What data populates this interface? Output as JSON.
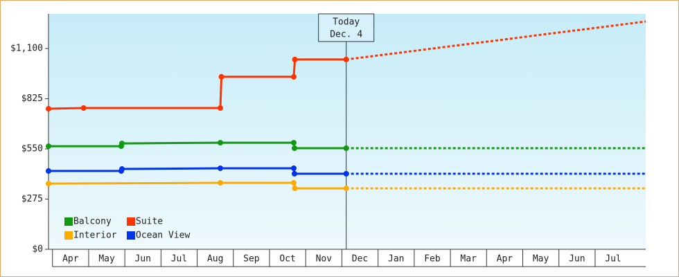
{
  "chart_data": {
    "type": "line",
    "annotation": {
      "lines": [
        "Today",
        "Dec. 4"
      ],
      "x": 8.12
    },
    "categories": [
      "Apr",
      "May",
      "Jun",
      "Jul",
      "Aug",
      "Sep",
      "Oct",
      "Nov",
      "Dec",
      "Jan",
      "Feb",
      "Mar",
      "Apr",
      "May",
      "Jun",
      "Jul"
    ],
    "xlim": [
      -0.11,
      16.4
    ],
    "ylim": [
      0,
      1290
    ],
    "yticks": [
      {
        "value": 0,
        "label": "$0"
      },
      {
        "value": 275,
        "label": "$275"
      },
      {
        "value": 550,
        "label": "$550"
      },
      {
        "value": 825,
        "label": "$825"
      },
      {
        "value": 1100,
        "label": "$1,100"
      }
    ],
    "legend": "bottom-left",
    "series": [
      {
        "name": "Balcony",
        "color": "#119911",
        "x": [
          -0.11,
          1.9,
          1.92,
          4.64,
          6.67,
          6.69,
          8.12
        ],
        "values": [
          565,
          565,
          580,
          584,
          584,
          554,
          554
        ],
        "forecast_x": [
          8.12,
          16.4
        ],
        "forecast_values": [
          554,
          554
        ]
      },
      {
        "name": "Suite",
        "color": "#ff3300",
        "x": [
          -0.11,
          0.86,
          4.64,
          4.67,
          6.67,
          6.7,
          8.12
        ],
        "values": [
          770,
          774,
          774,
          945,
          945,
          1040,
          1040
        ],
        "forecast_x": [
          8.12,
          16.4
        ],
        "forecast_values": [
          1040,
          1248
        ]
      },
      {
        "name": "Interior",
        "color": "#ffaa00",
        "x": [
          -0.11,
          4.64,
          6.67,
          6.7,
          8.12
        ],
        "values": [
          360,
          364,
          364,
          334,
          334
        ],
        "forecast_x": [
          8.12,
          16.4
        ],
        "forecast_values": [
          334,
          334
        ]
      },
      {
        "name": "Ocean View",
        "color": "#0033ee",
        "x": [
          -0.11,
          1.9,
          1.92,
          4.64,
          6.67,
          6.69,
          8.12
        ],
        "values": [
          429,
          429,
          440,
          444,
          444,
          414,
          414
        ],
        "forecast_x": [
          8.12,
          16.4
        ],
        "forecast_values": [
          414,
          414
        ]
      }
    ]
  }
}
